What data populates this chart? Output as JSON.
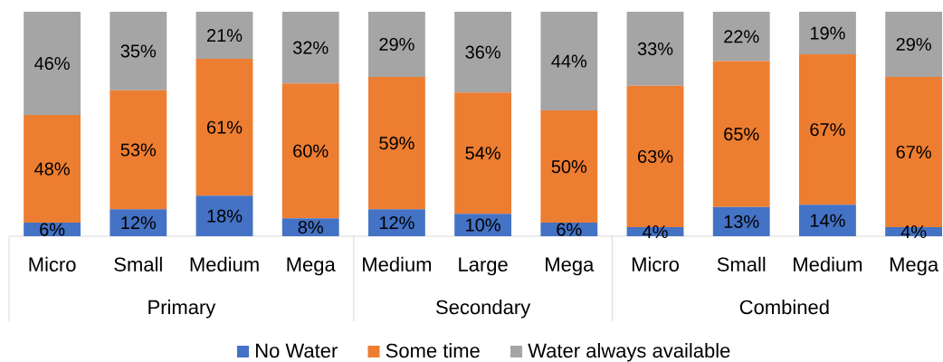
{
  "chart_data": {
    "type": "bar",
    "stacked": true,
    "categories": [
      "Micro",
      "Small",
      "Medium",
      "Mega",
      "Medium",
      "Large",
      "Mega",
      "Micro",
      "Small",
      "Medium",
      "Mega"
    ],
    "series": [
      {
        "name": "No Water",
        "color": "#4472c4",
        "values": [
          6,
          12,
          18,
          8,
          12,
          10,
          6,
          4,
          13,
          14,
          4
        ],
        "value_labels": [
          "6%",
          "12%",
          "18%",
          "8%",
          "12%",
          "10%",
          "6%",
          "4%",
          "13%",
          "14%",
          "4%"
        ]
      },
      {
        "name": "Some time",
        "color": "#ed7d31",
        "values": [
          48,
          53,
          61,
          60,
          59,
          54,
          50,
          63,
          65,
          67,
          67
        ],
        "value_labels": [
          "48%",
          "53%",
          "61%",
          "60%",
          "59%",
          "54%",
          "50%",
          "63%",
          "65%",
          "67%",
          "67%"
        ]
      },
      {
        "name": "Water always available",
        "color": "#a5a5a5",
        "values": [
          46,
          35,
          21,
          32,
          29,
          36,
          44,
          33,
          22,
          19,
          29
        ],
        "value_labels": [
          "46%",
          "35%",
          "21%",
          "32%",
          "29%",
          "36%",
          "44%",
          "33%",
          "22%",
          "19%",
          "29%"
        ]
      }
    ],
    "ylim": [
      0,
      100
    ],
    "legend": "bottom",
    "annotations": [
      "Primary",
      "Secondary",
      "Combined"
    ]
  }
}
